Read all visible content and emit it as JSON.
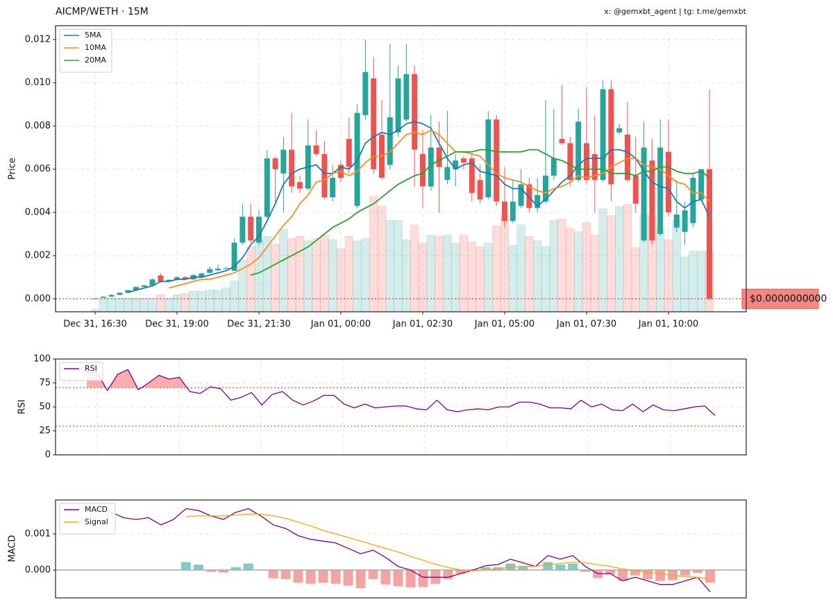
{
  "chart_data": [
    {
      "type": "candlestick",
      "title": "AICMP/WETH · 15M",
      "credit": "x: @gemxbt_agent | tg: t.me/gemxbt",
      "y_label": "Price",
      "x": [
        "Dec 31, 16:30",
        "Dec 31, 16:45",
        "Dec 31, 17:00",
        "Dec 31, 17:15",
        "Dec 31, 17:30",
        "Dec 31, 17:45",
        "Dec 31, 18:00",
        "Dec 31, 18:15",
        "Dec 31, 18:30",
        "Dec 31, 18:45",
        "Dec 31, 19:00",
        "Dec 31, 19:15",
        "Dec 31, 19:30",
        "Dec 31, 19:45",
        "Dec 31, 20:00",
        "Dec 31, 20:15",
        "Dec 31, 20:30",
        "Dec 31, 20:45",
        "Dec 31, 21:00",
        "Dec 31, 21:15",
        "Dec 31, 21:30",
        "Dec 31, 21:45",
        "Dec 31, 22:00",
        "Dec 31, 22:15",
        "Dec 31, 22:30",
        "Dec 31, 22:45",
        "Dec 31, 23:00",
        "Dec 31, 23:15",
        "Dec 31, 23:30",
        "Dec 31, 23:45",
        "Jan 01, 00:00",
        "Jan 01, 00:15",
        "Jan 01, 00:30",
        "Jan 01, 00:45",
        "Jan 01, 01:00",
        "Jan 01, 01:15",
        "Jan 01, 01:30",
        "Jan 01, 01:45",
        "Jan 01, 02:00",
        "Jan 01, 02:15",
        "Jan 01, 02:30",
        "Jan 01, 02:45",
        "Jan 01, 03:00",
        "Jan 01, 03:15",
        "Jan 01, 03:30",
        "Jan 01, 03:45",
        "Jan 01, 04:00",
        "Jan 01, 04:15",
        "Jan 01, 04:30",
        "Jan 01, 04:45",
        "Jan 01, 05:00",
        "Jan 01, 05:15",
        "Jan 01, 05:30",
        "Jan 01, 05:45",
        "Jan 01, 06:00",
        "Jan 01, 06:15",
        "Jan 01, 06:30",
        "Jan 01, 06:45",
        "Jan 01, 07:00",
        "Jan 01, 07:15",
        "Jan 01, 07:30",
        "Jan 01, 07:45",
        "Jan 01, 08:00",
        "Jan 01, 08:15",
        "Jan 01, 08:30",
        "Jan 01, 08:45",
        "Jan 01, 09:00",
        "Jan 01, 09:15",
        "Jan 01, 09:30",
        "Jan 01, 09:45",
        "Jan 01, 10:00",
        "Jan 01, 10:15",
        "Jan 01, 10:30",
        "Jan 01, 10:45",
        "Jan 01, 11:00",
        "Jan 01, 11:15"
      ],
      "open": [
        1e-05,
        5e-05,
        0.0001,
        0.00018,
        0.00028,
        0.0004,
        0.00055,
        0.00062,
        0.00108,
        0.0008,
        0.00088,
        0.001,
        0.0009,
        0.001,
        0.0012,
        0.00132,
        0.0014,
        0.0013,
        0.0026,
        0.0038,
        0.0026,
        0.0038,
        0.0065,
        0.0058,
        0.0069,
        0.0054,
        0.0051,
        0.0071,
        0.0067,
        0.0047,
        0.0062,
        0.0074,
        0.0043,
        0.0085,
        0.0102,
        0.0076,
        0.0062,
        0.0077,
        0.0083,
        0.0104,
        0.0067,
        0.0052,
        0.007,
        0.0055,
        0.006,
        0.0065,
        0.0065,
        0.0055,
        0.0047,
        0.0083,
        0.0045,
        0.0036,
        0.0043,
        0.0053,
        0.0042,
        0.0045,
        0.0057,
        0.0074,
        0.0072,
        0.0055,
        0.0072,
        0.0067,
        0.0055,
        0.0097,
        0.0077,
        0.0076,
        0.0057,
        0.0027,
        0.0064,
        0.003,
        0.0068,
        0.0033,
        0.0031,
        0.0035,
        0.0046,
        0.006
      ],
      "high": [
        3e-05,
        0.00012,
        0.0002,
        0.0003,
        0.00042,
        0.00058,
        0.00065,
        0.00095,
        0.0012,
        0.0009,
        0.00105,
        0.00105,
        0.00115,
        0.0012,
        0.0015,
        0.0016,
        0.0015,
        0.0028,
        0.0044,
        0.0044,
        0.0041,
        0.0069,
        0.0066,
        0.0075,
        0.0086,
        0.0057,
        0.0083,
        0.0078,
        0.0073,
        0.0062,
        0.0064,
        0.0084,
        0.009,
        0.012,
        0.0112,
        0.0092,
        0.0118,
        0.0108,
        0.0118,
        0.0108,
        0.0078,
        0.0085,
        0.0082,
        0.0087,
        0.0067,
        0.0066,
        0.0067,
        0.0062,
        0.0087,
        0.0085,
        0.0061,
        0.0055,
        0.006,
        0.0056,
        0.0056,
        0.0092,
        0.0088,
        0.0099,
        0.0075,
        0.0088,
        0.0098,
        0.0085,
        0.0101,
        0.0101,
        0.0081,
        0.0091,
        0.0075,
        0.0082,
        0.0074,
        0.0083,
        0.0083,
        0.0055,
        0.0045,
        0.0058,
        0.006,
        0.0097
      ],
      "low": [
        0,
        4e-05,
        0.0001,
        0.00017,
        0.00027,
        0.00039,
        0.00054,
        0.0006,
        0.00075,
        0.00078,
        0.00085,
        0.00088,
        0.00088,
        0.00098,
        0.00118,
        0.0013,
        0.00138,
        0.0013,
        0.0025,
        0.0026,
        0.0025,
        0.0037,
        0.0045,
        0.004,
        0.0049,
        0.0049,
        0.005,
        0.0066,
        0.0046,
        0.0045,
        0.0054,
        0.0058,
        0.0042,
        0.0083,
        0.0058,
        0.0055,
        0.006,
        0.0075,
        0.0082,
        0.0052,
        0.0042,
        0.005,
        0.004,
        0.0053,
        0.0052,
        0.006,
        0.0045,
        0.0044,
        0.0046,
        0.0043,
        0.0033,
        0.0035,
        0.0042,
        0.004,
        0.004,
        0.0044,
        0.0055,
        0.0071,
        0.0052,
        0.0054,
        0.0053,
        0.004,
        0.0054,
        0.0045,
        0.0076,
        0.0054,
        0.004,
        0.0026,
        0.0025,
        0.0029,
        0.0038,
        0.0031,
        0.0025,
        0.0033,
        0.0045,
        0
      ],
      "close": [
        2e-05,
        0.0001,
        0.00018,
        0.00028,
        0.0004,
        0.00055,
        0.00062,
        0.0009,
        0.0008,
        0.00088,
        0.001,
        0.0009,
        0.0011,
        0.00118,
        0.00138,
        0.0014,
        0.00142,
        0.0026,
        0.0038,
        0.0027,
        0.0038,
        0.0065,
        0.006,
        0.0069,
        0.0052,
        0.0051,
        0.0071,
        0.0067,
        0.0047,
        0.0056,
        0.0056,
        0.0061,
        0.0086,
        0.0105,
        0.006,
        0.0056,
        0.0084,
        0.0102,
        0.0104,
        0.0069,
        0.0052,
        0.007,
        0.0061,
        0.0061,
        0.0064,
        0.0063,
        0.0049,
        0.0046,
        0.0083,
        0.0045,
        0.0036,
        0.0045,
        0.0053,
        0.0042,
        0.0048,
        0.0057,
        0.0065,
        0.0072,
        0.0055,
        0.0082,
        0.0055,
        0.0055,
        0.0097,
        0.0053,
        0.0079,
        0.0055,
        0.0044,
        0.007,
        0.0027,
        0.007,
        0.004,
        0.0039,
        0.0041,
        0.0056,
        0.006,
        0
      ],
      "up_color": "#26a69a",
      "down_color": "#ef5350",
      "volume": [
        2,
        12,
        12,
        12,
        12,
        12,
        12,
        12,
        15,
        12,
        15,
        16,
        18,
        18,
        19,
        19,
        21,
        27,
        45,
        57,
        63,
        66,
        59,
        72,
        64,
        66,
        62,
        64,
        67,
        63,
        55,
        66,
        62,
        64,
        101,
        92,
        80,
        80,
        63,
        76,
        60,
        67,
        66,
        67,
        60,
        67,
        61,
        57,
        60,
        75,
        84,
        58,
        76,
        66,
        62,
        57,
        80,
        81,
        73,
        70,
        78,
        67,
        90,
        84,
        92,
        94,
        56,
        85,
        84,
        73,
        63,
        80,
        48,
        53,
        53,
        53
      ],
      "y2lim": [
        0,
        250
      ],
      "series": [
        {
          "name": "5MA",
          "color": "#1f77b4",
          "values": [
            null,
            null,
            null,
            null,
            0.0003,
            0.0004,
            0.0005,
            0.0006,
            0.0008,
            0.0008,
            0.0009,
            0.0009,
            0.001,
            0.001,
            0.0011,
            0.0012,
            0.0013,
            0.0015,
            0.0019,
            0.0025,
            0.0029,
            0.0036,
            0.0044,
            0.0053,
            0.0058,
            0.006,
            0.0061,
            0.0062,
            0.0058,
            0.0058,
            0.0061,
            0.006,
            0.0064,
            0.0072,
            0.0075,
            0.0077,
            0.0076,
            0.0078,
            0.0081,
            0.0082,
            0.0081,
            0.0079,
            0.0072,
            0.0065,
            0.006,
            0.0062,
            0.0063,
            0.0059,
            0.0058,
            0.0057,
            0.0053,
            0.0051,
            0.0051,
            0.0047,
            0.0043,
            0.0046,
            0.005,
            0.0054,
            0.0057,
            0.0062,
            0.0065,
            0.0065,
            0.0065,
            0.0069,
            0.0069,
            0.0068,
            0.0065,
            0.0059,
            0.0054,
            0.0052,
            0.0051,
            0.0045,
            0.0042,
            0.0045,
            0.0046,
            0.0038
          ]
        },
        {
          "name": "10MA",
          "color": "#ff8c1a",
          "values": [
            null,
            null,
            null,
            null,
            null,
            null,
            null,
            null,
            null,
            0.0005,
            0.0006,
            0.0007,
            0.0008,
            0.0009,
            0.0009,
            0.001,
            0.0011,
            0.0012,
            0.0014,
            0.0016,
            0.0019,
            0.0024,
            0.0029,
            0.0034,
            0.0038,
            0.0044,
            0.0048,
            0.0054,
            0.0055,
            0.0058,
            0.0059,
            0.0057,
            0.0059,
            0.0063,
            0.0066,
            0.0066,
            0.0068,
            0.0072,
            0.0076,
            0.0077,
            0.0076,
            0.0078,
            0.0076,
            0.0072,
            0.0068,
            0.0068,
            0.0067,
            0.0066,
            0.0062,
            0.0058,
            0.0056,
            0.0055,
            0.0054,
            0.0052,
            0.005,
            0.0049,
            0.0051,
            0.0052,
            0.0054,
            0.0057,
            0.0056,
            0.0057,
            0.0058,
            0.0061,
            0.0063,
            0.0065,
            0.0065,
            0.0062,
            0.0061,
            0.006,
            0.0057,
            0.0054,
            0.0053,
            0.0049,
            0.0049,
            0.0045
          ]
        },
        {
          "name": "20MA",
          "color": "#2ca02c",
          "values": [
            null,
            null,
            null,
            null,
            null,
            null,
            null,
            null,
            null,
            null,
            null,
            null,
            null,
            null,
            null,
            null,
            null,
            null,
            null,
            0.0011,
            0.0012,
            0.0014,
            0.0016,
            0.0018,
            0.002,
            0.0022,
            0.0024,
            0.0027,
            0.003,
            0.0033,
            0.0035,
            0.0037,
            0.004,
            0.0042,
            0.0044,
            0.0047,
            0.005,
            0.0053,
            0.0055,
            0.0057,
            0.0058,
            0.0062,
            0.0064,
            0.0066,
            0.0068,
            0.0068,
            0.0068,
            0.0069,
            0.0069,
            0.0068,
            0.0068,
            0.0068,
            0.0068,
            0.0069,
            0.0069,
            0.0067,
            0.0065,
            0.0064,
            0.0062,
            0.006,
            0.006,
            0.006,
            0.006,
            0.0058,
            0.0058,
            0.0058,
            0.0057,
            0.0059,
            0.0059,
            0.0061,
            0.0061,
            0.0059,
            0.0058,
            0.0058,
            0.0059,
            0.0056
          ]
        }
      ],
      "ylim": [
        -0.0006,
        0.01264
      ],
      "yticks": [
        {
          "value": 0,
          "label": "0.000"
        },
        {
          "value": 0.002,
          "label": "0.002"
        },
        {
          "value": 0.004,
          "label": "0.004"
        },
        {
          "value": 0.006,
          "label": "0.006"
        },
        {
          "value": 0.008,
          "label": "0.008"
        },
        {
          "value": 0.01,
          "label": "0.010"
        },
        {
          "value": 0.012,
          "label": "0.012"
        }
      ],
      "xticks": [
        "Dec 31, 16:30",
        "Dec 31, 19:00",
        "Dec 31, 21:30",
        "Jan 01, 00:00",
        "Jan 01, 02:30",
        "Jan 01, 05:00",
        "Jan 01, 07:30",
        "Jan 01, 10:00"
      ],
      "grid": true,
      "legend": "upper left",
      "last_price": {
        "value": 0,
        "label": "$0.0000000000",
        "color": "#ef5350"
      }
    },
    {
      "type": "line",
      "y_label": "RSI",
      "series": [
        {
          "name": "RSI",
          "color": "#800080",
          "values": [
            87,
            86,
            67,
            84,
            89,
            68,
            75,
            83,
            79,
            81,
            66,
            64,
            71,
            69,
            57,
            60,
            65,
            52,
            63,
            66,
            57,
            52,
            56,
            62,
            62,
            53,
            49,
            53,
            49,
            50,
            51,
            51,
            48,
            47,
            57,
            47,
            45,
            47,
            48,
            47,
            50,
            50,
            55,
            55,
            53,
            49,
            49,
            48,
            57,
            50,
            53,
            47,
            46,
            53,
            45,
            52,
            47,
            46,
            48,
            50,
            51,
            41
          ]
        }
      ],
      "ylim": [
        0,
        100
      ],
      "yticks": [
        0,
        25,
        50,
        75,
        100
      ],
      "grid": true,
      "legend": "upper left",
      "levels": [
        {
          "value": 70,
          "color": "#f06060"
        },
        {
          "value": 30,
          "color": "#50c050"
        }
      ],
      "overbought_fill": "#f77"
    },
    {
      "type": "macd",
      "y_label": "MACD",
      "series": [
        {
          "name": "MACD",
          "color": "#800080",
          "values": [
            0.0016,
            0.00145,
            0.0014,
            0.00145,
            0.00125,
            0.0014,
            0.0017,
            0.00165,
            0.0015,
            0.0014,
            0.0016,
            0.0017,
            0.0015,
            0.00125,
            0.00115,
            0.00095,
            0.00085,
            0.0008,
            0.00075,
            0.0006,
            0.00045,
            0.00055,
            0.00035,
            0.0001,
            0,
            -0.0002,
            -0.0002,
            -0.0002,
            -0.0001,
            0,
            0.00012,
            0.00015,
            0.0003,
            0.0002,
            0.0001,
            0.0004,
            0.0003,
            0.0004,
            0.0001,
            -0.0001,
            -0.0001,
            -0.0003,
            -0.0002,
            -0.0003,
            -0.0004,
            -0.0004,
            -0.0003,
            -0.0002,
            -0.0006
          ]
        },
        {
          "name": "Signal",
          "color": "#ffa500",
          "values": [
            null,
            null,
            null,
            null,
            null,
            null,
            0.00148,
            0.0015,
            0.0015,
            0.0015,
            0.00152,
            0.00155,
            0.00155,
            0.0015,
            0.00143,
            0.00133,
            0.00122,
            0.0011,
            0.001,
            0.0009,
            0.0008,
            0.0007,
            0.0006,
            0.0005,
            0.00038,
            0.00027,
            0.00016,
            7e-05,
            1e-05,
            -2e-05,
            1e-05,
            3e-05,
            8e-05,
            0.0001,
            0.0001,
            0.00015,
            0.00018,
            0.00022,
            0.0002,
            0.00015,
            0.0001,
            3e-05,
            -1e-05,
            -6e-05,
            -0.0001,
            -0.00015,
            -0.00018,
            -0.0002,
            -0.00025
          ]
        }
      ],
      "histogram": [
        null,
        null,
        null,
        null,
        null,
        null,
        0.00022,
        0.00015,
        -5e-05,
        -7e-05,
        8e-05,
        0.00018,
        0,
        -0.00023,
        -0.00025,
        -0.00035,
        -0.00038,
        -0.00035,
        -0.00038,
        -0.00043,
        -0.0005,
        -0.00025,
        -0.0004,
        -0.00045,
        -0.00048,
        -0.00047,
        -0.00038,
        -0.00025,
        -0.0001,
        -2e-05,
        8e-05,
        8e-05,
        0.00018,
        0.0001,
        0,
        0.00022,
        0.00015,
        0.00018,
        -5e-05,
        -0.00022,
        -0.00012,
        -0.0003,
        -0.00015,
        -0.00025,
        -0.0003,
        -0.00028,
        -0.00015,
        -8e-05,
        -0.00035
      ],
      "histogram_colors": {
        "positive": "#80cbc4",
        "negative": "#f4a3a3"
      },
      "ylim": [
        -0.00077,
        0.00194
      ],
      "yticks": [
        {
          "value": 0,
          "label": "0.000"
        },
        {
          "value": 0.001,
          "label": "0.001"
        }
      ],
      "grid": true,
      "legend": "upper left"
    }
  ]
}
